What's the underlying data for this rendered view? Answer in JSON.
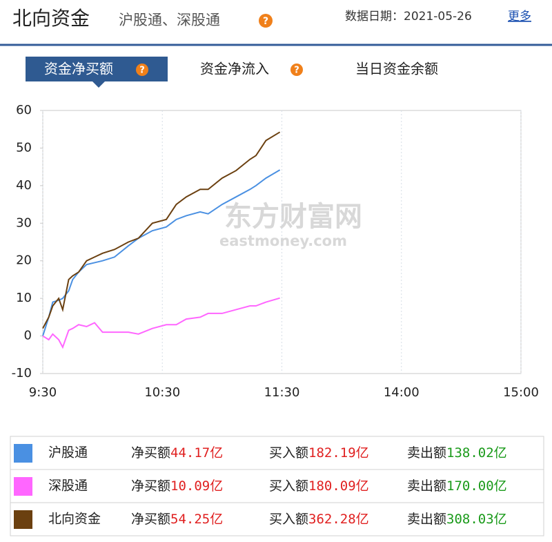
{
  "header": {
    "title": "北向资金",
    "subtitle": "沪股通、深股通",
    "date": "数据日期：2021-05-26",
    "more": "更多"
  },
  "tabs": [
    "资金净买额",
    "资金净流入",
    "当日资金余额"
  ],
  "watermark": {
    "cn": "东方财富网",
    "en": "eastmoney.com"
  },
  "chart_data": {
    "type": "line",
    "x": [
      0,
      3,
      5,
      8,
      10,
      13,
      15,
      18,
      22,
      26,
      30,
      36,
      43,
      48,
      55,
      62,
      67,
      72,
      79,
      83,
      90,
      97,
      104,
      107,
      112,
      119
    ],
    "xlim": [
      0,
      240
    ],
    "xticks": [
      {
        "value": 0,
        "label": "9:30"
      },
      {
        "value": 60,
        "label": "10:30"
      },
      {
        "value": 120,
        "label": "11:30"
      },
      {
        "value": 180,
        "label": "14:00"
      },
      {
        "value": 240,
        "label": "15:00"
      }
    ],
    "ylim": [
      -10,
      60
    ],
    "yticks": [
      -10,
      0,
      10,
      20,
      30,
      40,
      50,
      60
    ],
    "grid": true,
    "series": [
      {
        "name": "沪股通",
        "color": "#4a90e2",
        "values": [
          0,
          5,
          9,
          9.5,
          10,
          12,
          15,
          17,
          19,
          19.5,
          20,
          21,
          24,
          26,
          28,
          29,
          31,
          32,
          33,
          32.5,
          35,
          37,
          39,
          40,
          42,
          44.17
        ]
      },
      {
        "name": "深股通",
        "color": "#ff66ff",
        "values": [
          0,
          -1,
          0.5,
          -1,
          -3,
          1.5,
          2,
          3,
          2.5,
          3.5,
          1,
          1,
          1,
          0.5,
          2,
          3,
          3,
          4.5,
          5,
          6,
          6,
          7,
          8,
          8,
          9,
          10.09
        ]
      },
      {
        "name": "北向资金",
        "color": "#6b4010",
        "values": [
          2,
          5,
          8,
          10,
          7,
          15,
          16,
          17,
          20,
          21,
          22,
          23,
          25,
          26,
          30,
          31,
          35,
          37,
          39,
          39,
          42,
          44,
          47,
          48,
          52,
          54.25
        ]
      }
    ]
  },
  "summary": [
    {
      "net_label": "净买额",
      "net": "44.17亿",
      "buy_label": "买入额",
      "buy": "182.19亿",
      "sell_label": "卖出额",
      "sell": "138.02亿"
    },
    {
      "net_label": "净买额",
      "net": "10.09亿",
      "buy_label": "买入额",
      "buy": "180.09亿",
      "sell_label": "卖出额",
      "sell": "170.00亿"
    },
    {
      "net_label": "净买额",
      "net": "54.25亿",
      "buy_label": "买入额",
      "buy": "362.28亿",
      "sell_label": "卖出额",
      "sell": "308.03亿"
    }
  ]
}
